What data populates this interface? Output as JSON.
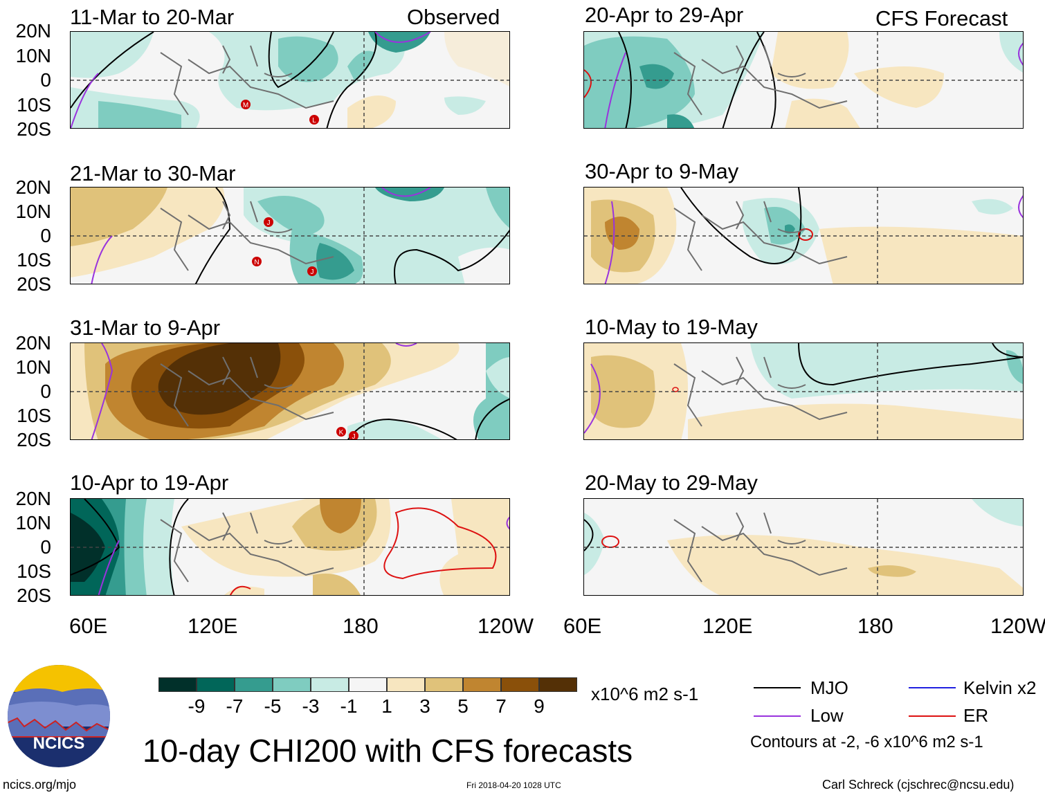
{
  "left_header": "Observed",
  "right_header": "CFS Forecast",
  "lat_labels": [
    "20N",
    "10N",
    "0",
    "10S",
    "20S"
  ],
  "lon_labels": [
    "60E",
    "120E",
    "180",
    "120W"
  ],
  "panels_left": [
    {
      "title": "11-Mar to 20-Mar",
      "storms": [
        "M",
        "L"
      ]
    },
    {
      "title": "21-Mar to 30-Mar",
      "storms": [
        "J",
        "N",
        "J"
      ]
    },
    {
      "title": "31-Mar to 9-Apr",
      "storms": [
        "K",
        "J"
      ]
    },
    {
      "title": "10-Apr to 19-Apr",
      "storms": []
    }
  ],
  "panels_right": [
    {
      "title": "20-Apr to 29-Apr"
    },
    {
      "title": "30-Apr to 9-May"
    },
    {
      "title": "10-May to 19-May"
    },
    {
      "title": "20-May to 29-May"
    }
  ],
  "colorbar": {
    "colors": [
      "#01302a",
      "#016659",
      "#359c8f",
      "#7fccc0",
      "#c8ebe4",
      "#f5f5f5",
      "#f7e6c0",
      "#e0c27a",
      "#c08530",
      "#8a500a",
      "#543006"
    ],
    "ticks": [
      "-9",
      "-7",
      "-5",
      "-3",
      "-1",
      "1",
      "3",
      "5",
      "7",
      "9"
    ],
    "units": "x10^6 m2 s-1"
  },
  "legend": {
    "items": [
      {
        "label": "MJO",
        "color": "#000000"
      },
      {
        "label": "Kelvin x2",
        "color": "#2020e0"
      },
      {
        "label": "Low",
        "color": "#9933dd"
      },
      {
        "label": "ER",
        "color": "#dd1111"
      }
    ],
    "contours_note": "Contours at -2, -6 x10^6 m2 s-1"
  },
  "main_title": "10-day CHI200 with CFS forecasts",
  "logo_text": "NCICS",
  "footer": {
    "url": "ncics.org/mjo",
    "timestamp": "Fri 2018-04-20 1028 UTC",
    "credit": "Carl Schreck (cjschrec@ncsu.edu)"
  }
}
